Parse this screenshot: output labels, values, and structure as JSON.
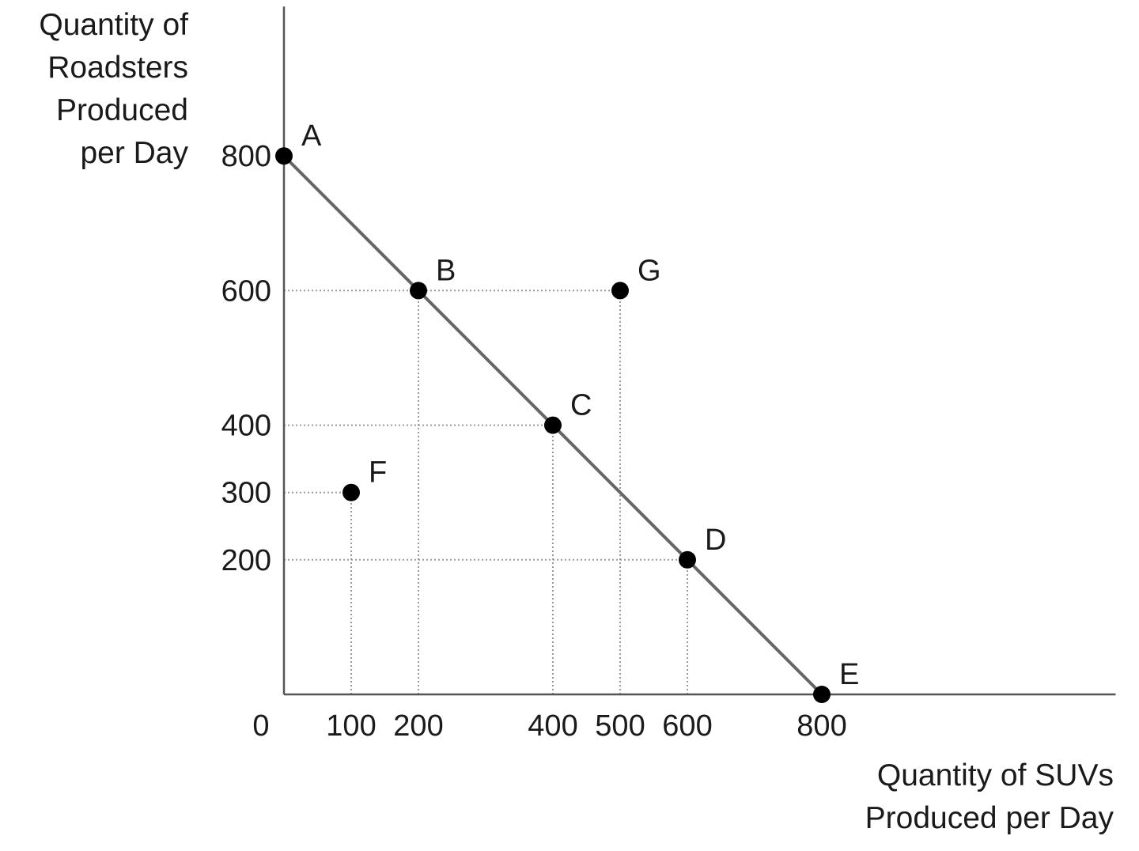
{
  "chart_data": {
    "type": "line",
    "ylabel_lines": [
      "Quantity of",
      "Roadsters",
      "Produced",
      "per Day"
    ],
    "xlabel_lines": [
      "Quantity of SUVs",
      "Produced per Day"
    ],
    "origin_label": "0",
    "x_ticks": [
      100,
      200,
      400,
      500,
      600,
      800
    ],
    "y_ticks": [
      200,
      300,
      400,
      600,
      800
    ],
    "xlim": [
      0,
      1237
    ],
    "ylim": [
      0,
      1022
    ],
    "series": [
      {
        "x": [
          0,
          200,
          400,
          600,
          800
        ],
        "y": [
          800,
          600,
          400,
          200,
          0
        ]
      }
    ],
    "points": [
      {
        "label": "A",
        "x": 0,
        "y": 800
      },
      {
        "label": "B",
        "x": 200,
        "y": 600
      },
      {
        "label": "C",
        "x": 400,
        "y": 400
      },
      {
        "label": "D",
        "x": 600,
        "y": 200
      },
      {
        "label": "E",
        "x": 800,
        "y": 0
      },
      {
        "label": "F",
        "x": 100,
        "y": 300
      },
      {
        "label": "G",
        "x": 500,
        "y": 600
      }
    ],
    "guides": [
      {
        "from": [
          0,
          600
        ],
        "to": [
          500,
          600
        ]
      },
      {
        "from": [
          0,
          400
        ],
        "to": [
          400,
          400
        ]
      },
      {
        "from": [
          0,
          300
        ],
        "to": [
          100,
          300
        ]
      },
      {
        "from": [
          0,
          200
        ],
        "to": [
          600,
          200
        ]
      },
      {
        "from": [
          100,
          0
        ],
        "to": [
          100,
          300
        ]
      },
      {
        "from": [
          200,
          0
        ],
        "to": [
          200,
          600
        ]
      },
      {
        "from": [
          400,
          0
        ],
        "to": [
          400,
          400
        ]
      },
      {
        "from": [
          500,
          0
        ],
        "to": [
          500,
          600
        ]
      },
      {
        "from": [
          600,
          0
        ],
        "to": [
          600,
          200
        ]
      }
    ],
    "grid": false,
    "colors": {
      "line": "#666666",
      "point": "#000000",
      "axis": "#555555",
      "guide": "#9a9a9a",
      "text": "#1a1a1a"
    }
  }
}
